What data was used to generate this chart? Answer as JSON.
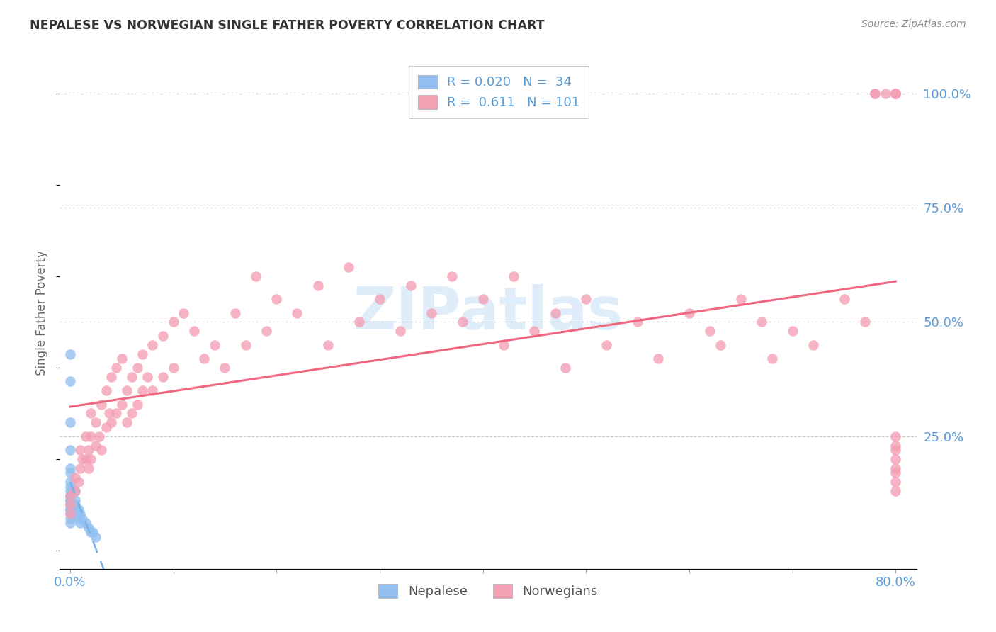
{
  "title": "NEPALESE VS NORWEGIAN SINGLE FATHER POVERTY CORRELATION CHART",
  "source": "Source: ZipAtlas.com",
  "ylabel": "Single Father Poverty",
  "watermark": "ZIPatlas",
  "nepalese_color": "#92c0f0",
  "norwegians_color": "#f4a0b5",
  "nepalese_line_color": "#7ab0e8",
  "norwegians_line_color": "#f06880",
  "background_color": "#ffffff",
  "blue_text_color": "#5b9bd5",
  "dark_text_color": "#555555",
  "xmin": 0.0,
  "xmax": 0.8,
  "ymin": -0.04,
  "ymax": 1.08,
  "yticks": [
    0.25,
    0.5,
    0.75,
    1.0
  ],
  "ytick_labels": [
    "25.0%",
    "50.0%",
    "75.0%",
    "100.0%"
  ],
  "xtick_left_label": "0.0%",
  "xtick_right_label": "80.0%",
  "legend_labels": [
    "R = 0.020   N =  34",
    "R =  0.611   N = 101"
  ],
  "bottom_legend_labels": [
    "Nepalese",
    "Norwegians"
  ],
  "nep_x": [
    0.0,
    0.0,
    0.0,
    0.0,
    0.0,
    0.0,
    0.0,
    0.0,
    0.0,
    0.0,
    0.0,
    0.0,
    0.0,
    0.0,
    0.0,
    0.0,
    0.0,
    0.0,
    0.0,
    0.0,
    0.005,
    0.005,
    0.005,
    0.005,
    0.008,
    0.008,
    0.01,
    0.01,
    0.012,
    0.015,
    0.018,
    0.02,
    0.022,
    0.025
  ],
  "nep_y": [
    0.43,
    0.37,
    0.28,
    0.22,
    0.18,
    0.17,
    0.15,
    0.14,
    0.13,
    0.12,
    0.12,
    0.11,
    0.11,
    0.1,
    0.1,
    0.09,
    0.09,
    0.08,
    0.07,
    0.06,
    0.13,
    0.11,
    0.1,
    0.08,
    0.09,
    0.07,
    0.08,
    0.06,
    0.07,
    0.06,
    0.05,
    0.04,
    0.04,
    0.03
  ],
  "nor_x": [
    0.0,
    0.0,
    0.0,
    0.005,
    0.005,
    0.008,
    0.01,
    0.01,
    0.012,
    0.015,
    0.015,
    0.018,
    0.018,
    0.02,
    0.02,
    0.02,
    0.025,
    0.025,
    0.028,
    0.03,
    0.03,
    0.035,
    0.035,
    0.038,
    0.04,
    0.04,
    0.045,
    0.045,
    0.05,
    0.05,
    0.055,
    0.055,
    0.06,
    0.06,
    0.065,
    0.065,
    0.07,
    0.07,
    0.075,
    0.08,
    0.08,
    0.09,
    0.09,
    0.1,
    0.1,
    0.11,
    0.12,
    0.13,
    0.14,
    0.15,
    0.16,
    0.17,
    0.18,
    0.19,
    0.2,
    0.22,
    0.24,
    0.25,
    0.27,
    0.28,
    0.3,
    0.32,
    0.33,
    0.35,
    0.37,
    0.38,
    0.4,
    0.42,
    0.43,
    0.45,
    0.47,
    0.48,
    0.5,
    0.52,
    0.55,
    0.57,
    0.6,
    0.62,
    0.63,
    0.65,
    0.67,
    0.68,
    0.7,
    0.72,
    0.75,
    0.77,
    0.78,
    0.78,
    0.79,
    0.8,
    0.8,
    0.8,
    0.8,
    0.8,
    0.8,
    0.8,
    0.8,
    0.8,
    0.8,
    0.8,
    0.8
  ],
  "nor_y": [
    0.12,
    0.1,
    0.08,
    0.16,
    0.13,
    0.15,
    0.22,
    0.18,
    0.2,
    0.25,
    0.2,
    0.22,
    0.18,
    0.3,
    0.25,
    0.2,
    0.28,
    0.23,
    0.25,
    0.32,
    0.22,
    0.35,
    0.27,
    0.3,
    0.38,
    0.28,
    0.4,
    0.3,
    0.42,
    0.32,
    0.35,
    0.28,
    0.38,
    0.3,
    0.4,
    0.32,
    0.43,
    0.35,
    0.38,
    0.45,
    0.35,
    0.47,
    0.38,
    0.5,
    0.4,
    0.52,
    0.48,
    0.42,
    0.45,
    0.4,
    0.52,
    0.45,
    0.6,
    0.48,
    0.55,
    0.52,
    0.58,
    0.45,
    0.62,
    0.5,
    0.55,
    0.48,
    0.58,
    0.52,
    0.6,
    0.5,
    0.55,
    0.45,
    0.6,
    0.48,
    0.52,
    0.4,
    0.55,
    0.45,
    0.5,
    0.42,
    0.52,
    0.48,
    0.45,
    0.55,
    0.5,
    0.42,
    0.48,
    0.45,
    0.55,
    0.5,
    1.0,
    1.0,
    1.0,
    1.0,
    1.0,
    1.0,
    1.0,
    0.22,
    0.18,
    0.25,
    0.2,
    0.15,
    0.23,
    0.17,
    0.13
  ]
}
